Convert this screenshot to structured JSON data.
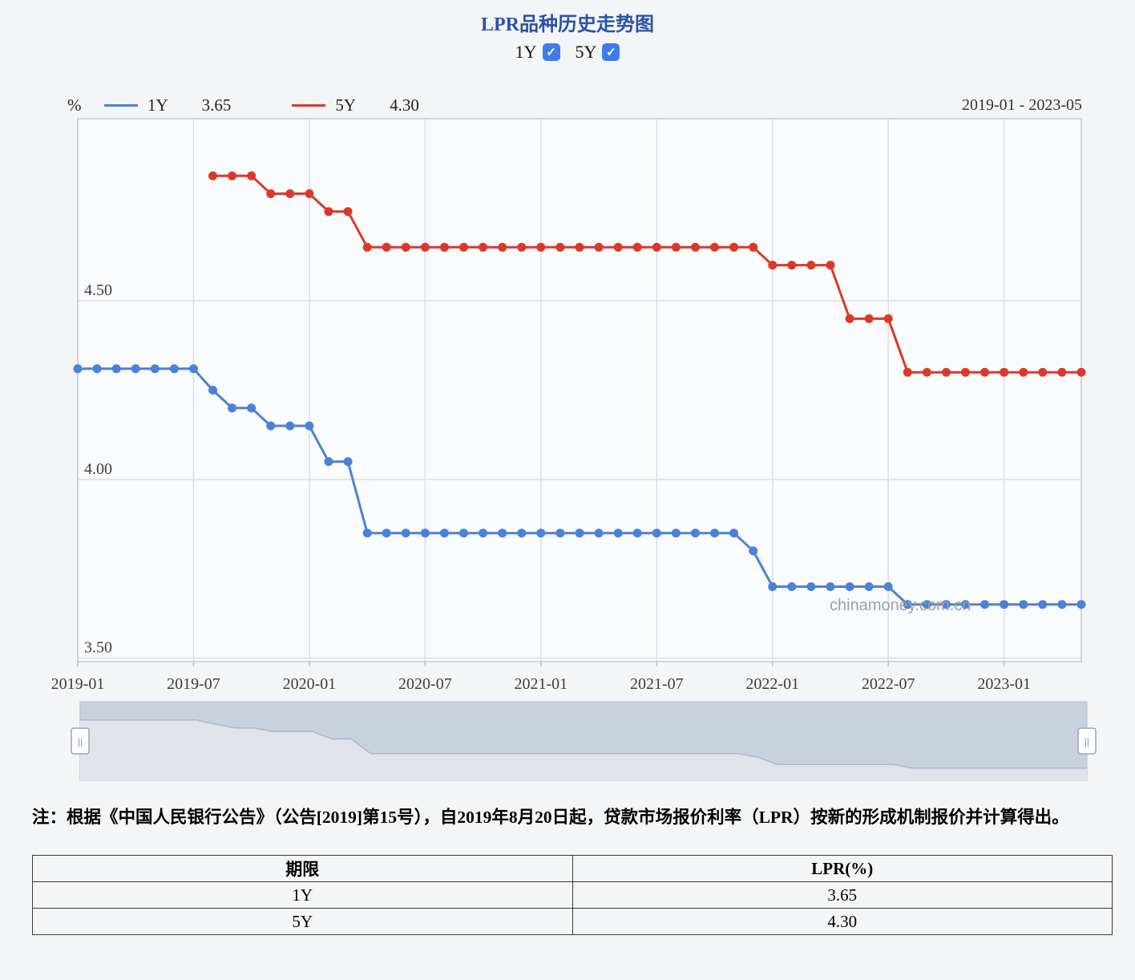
{
  "title": "LPR品种历史走势图",
  "icons": {
    "check": "✓"
  },
  "toggles": [
    {
      "label": "1Y",
      "checked": true
    },
    {
      "label": "5Y",
      "checked": true
    }
  ],
  "legend": {
    "unit": "%",
    "items": [
      {
        "name": "1Y",
        "value": "3.65",
        "color": "#4d81d8"
      },
      {
        "name": "5Y",
        "value": "4.30",
        "color": "#da392a"
      }
    ],
    "date_range": "2019-01 - 2023-05"
  },
  "watermark": "chinamoney.com.cn",
  "chart_data": {
    "type": "line",
    "title": "LPR品种历史走势图",
    "ylabel": "%",
    "ylim": [
      3.49,
      5.01
    ],
    "grid": true,
    "x": [
      "2019-01",
      "2019-02",
      "2019-03",
      "2019-04",
      "2019-05",
      "2019-06",
      "2019-07",
      "2019-08",
      "2019-09",
      "2019-10",
      "2019-11",
      "2019-12",
      "2020-01",
      "2020-02",
      "2020-03",
      "2020-04",
      "2020-05",
      "2020-06",
      "2020-07",
      "2020-08",
      "2020-09",
      "2020-10",
      "2020-11",
      "2020-12",
      "2021-01",
      "2021-02",
      "2021-03",
      "2021-04",
      "2021-05",
      "2021-06",
      "2021-07",
      "2021-08",
      "2021-09",
      "2021-10",
      "2021-11",
      "2021-12",
      "2022-01",
      "2022-02",
      "2022-03",
      "2022-04",
      "2022-05",
      "2022-06",
      "2022-07",
      "2022-08",
      "2022-09",
      "2022-10",
      "2022-11",
      "2022-12",
      "2023-01",
      "2023-02",
      "2023-03",
      "2023-04",
      "2023-05"
    ],
    "series": [
      {
        "name": "1Y",
        "color": "#4d81d8",
        "values": [
          4.31,
          4.31,
          4.31,
          4.31,
          4.31,
          4.31,
          4.31,
          4.25,
          4.2,
          4.2,
          4.15,
          4.15,
          4.15,
          4.05,
          4.05,
          3.85,
          3.85,
          3.85,
          3.85,
          3.85,
          3.85,
          3.85,
          3.85,
          3.85,
          3.85,
          3.85,
          3.85,
          3.85,
          3.85,
          3.85,
          3.85,
          3.85,
          3.85,
          3.85,
          3.85,
          3.8,
          3.7,
          3.7,
          3.7,
          3.7,
          3.7,
          3.7,
          3.7,
          3.65,
          3.65,
          3.65,
          3.65,
          3.65,
          3.65,
          3.65,
          3.65,
          3.65,
          3.65
        ]
      },
      {
        "name": "5Y",
        "color": "#da392a",
        "values": [
          null,
          null,
          null,
          null,
          null,
          null,
          null,
          4.85,
          4.85,
          4.85,
          4.8,
          4.8,
          4.8,
          4.75,
          4.75,
          4.65,
          4.65,
          4.65,
          4.65,
          4.65,
          4.65,
          4.65,
          4.65,
          4.65,
          4.65,
          4.65,
          4.65,
          4.65,
          4.65,
          4.65,
          4.65,
          4.65,
          4.65,
          4.65,
          4.65,
          4.65,
          4.6,
          4.6,
          4.6,
          4.6,
          4.45,
          4.45,
          4.45,
          4.3,
          4.3,
          4.3,
          4.3,
          4.3,
          4.3,
          4.3,
          4.3,
          4.3,
          4.3
        ]
      }
    ],
    "yticks": [
      {
        "v": 4.5,
        "label": "4.50"
      },
      {
        "v": 4.0,
        "label": "4.00"
      },
      {
        "v": 3.5,
        "label": "3.50"
      }
    ],
    "xticks": [
      {
        "i": 0,
        "label": "2019-01"
      },
      {
        "i": 6,
        "label": "2019-07"
      },
      {
        "i": 12,
        "label": "2020-01"
      },
      {
        "i": 18,
        "label": "2020-07"
      },
      {
        "i": 24,
        "label": "2021-01"
      },
      {
        "i": 30,
        "label": "2021-07"
      },
      {
        "i": 36,
        "label": "2022-01"
      },
      {
        "i": 42,
        "label": "2022-07"
      },
      {
        "i": 48,
        "label": "2023-01"
      }
    ]
  },
  "navigator": {
    "handle_glyph": "||"
  },
  "note": "注：根据《中国人民银行公告》（公告[2019]第15号），自2019年8月20日起，贷款市场报价利率（LPR）按新的形成机制报价并计算得出。",
  "table": {
    "headers": [
      "期限",
      "LPR(%)"
    ],
    "rows": [
      [
        "1Y",
        "3.65"
      ],
      [
        "5Y",
        "4.30"
      ]
    ]
  }
}
